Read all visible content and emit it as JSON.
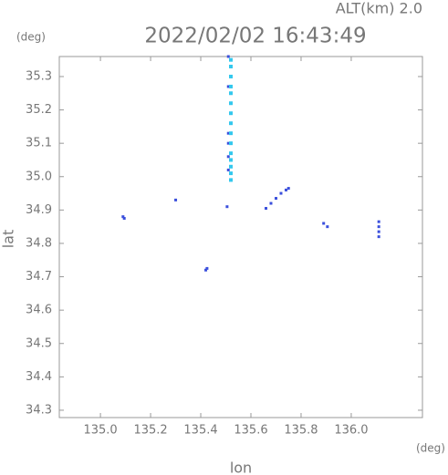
{
  "chart_data": {
    "type": "scatter",
    "title": "2022/02/02 16:43:49",
    "subtitle": "ALT(km) 2.0",
    "y_unit": "(deg)",
    "x_unit": "(deg)",
    "xlabel": "lon",
    "ylabel": "lat",
    "xlim": [
      134.836,
      136.284
    ],
    "ylim": [
      34.278,
      35.36
    ],
    "xticks": [
      {
        "value": 135,
        "label": "135.0"
      },
      135.2,
      135.4,
      135.6,
      135.8,
      {
        "value": 136,
        "label": "136.0"
      }
    ],
    "yticks": [
      34.3,
      34.4,
      34.5,
      34.6,
      34.7,
      34.8,
      34.9,
      {
        "value": 35,
        "label": "35.0"
      },
      35.1,
      35.2,
      35.3
    ],
    "grid": false,
    "series": [
      {
        "color": "#3a4fdc",
        "size": 3,
        "x": [
          135.51,
          135.51,
          135.51,
          135.51,
          135.51,
          135.51,
          135.09,
          135.095,
          135.3,
          135.505,
          135.42,
          135.425,
          135.66,
          135.68,
          135.7,
          135.72,
          135.74,
          135.75,
          135.89,
          135.905,
          136.11,
          136.11,
          136.11,
          136.11
        ],
        "values": [
          35.36,
          35.27,
          35.13,
          35.1,
          35.06,
          35.02,
          34.88,
          34.875,
          34.93,
          34.91,
          34.72,
          34.725,
          34.905,
          34.92,
          34.935,
          34.95,
          34.96,
          34.965,
          34.86,
          34.85,
          34.865,
          34.85,
          34.835,
          34.82
        ]
      },
      {
        "color": "#33c8ee",
        "size": 4,
        "x": [
          135.52,
          135.52,
          135.52,
          135.52,
          135.52,
          135.52,
          135.52,
          135.52,
          135.52,
          135.52,
          135.52,
          135.52,
          135.52,
          135.52,
          135.52
        ],
        "values": [
          35.35,
          35.33,
          35.3,
          35.27,
          35.25,
          35.22,
          35.19,
          35.16,
          35.13,
          35.1,
          35.07,
          35.05,
          35.03,
          35.01,
          34.99
        ]
      }
    ]
  }
}
